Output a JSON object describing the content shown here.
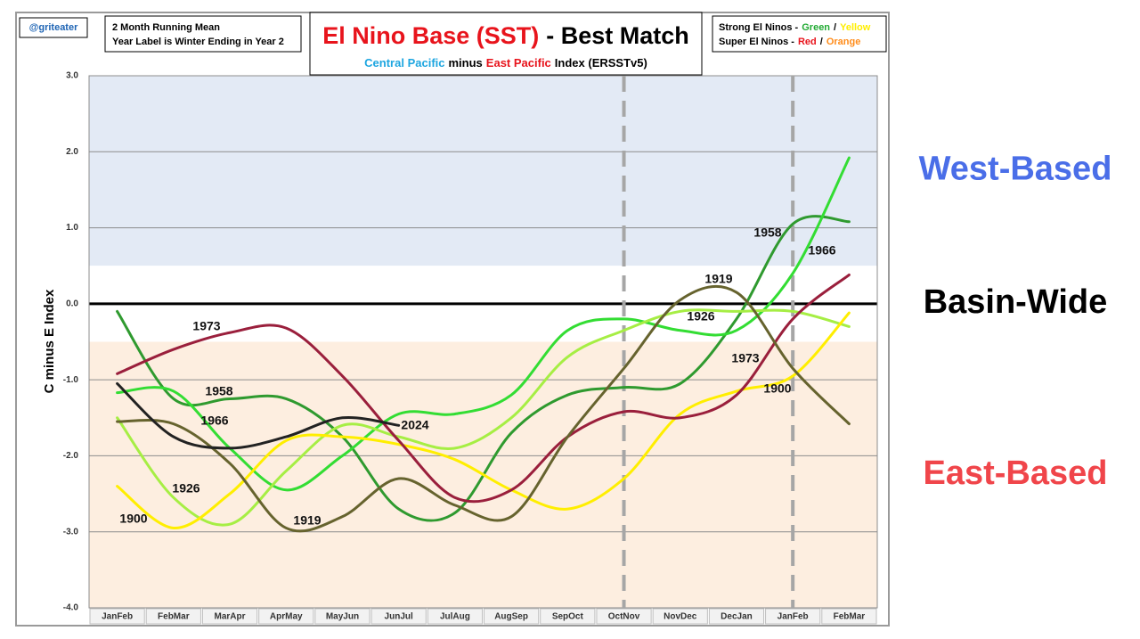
{
  "chart_data": {
    "type": "line",
    "author": "@griteater",
    "notes": [
      "2 Month Running Mean",
      "Year Label is Winter Ending in Year 2"
    ],
    "title": [
      "El Nino Base (SST)",
      "- Best Match"
    ],
    "title_colors": [
      "#e8141c",
      "#000000"
    ],
    "subtitle": [
      "Central Pacific",
      "minus",
      "East Pacific",
      "Index (ERSSTv5)"
    ],
    "subtitle_colors": [
      "#1ea6e0",
      "#000000",
      "#e8141c",
      "#000000"
    ],
    "key": [
      [
        "Strong El Ninos -",
        "Green",
        "/",
        "Yellow"
      ],
      [
        "Super El Ninos -",
        "Red",
        "/",
        "Orange"
      ]
    ],
    "key_colors": [
      [
        "#000000",
        "#22aa33",
        "#000000",
        "#ffee00"
      ],
      [
        "#000000",
        "#e8141c",
        "#000000",
        "#ff8c1a"
      ]
    ],
    "y_label": "C minus E Index",
    "categories": [
      "JanFeb",
      "FebMar",
      "MarApr",
      "AprMay",
      "MayJun",
      "JunJul",
      "JulAug",
      "AugSep",
      "SepOct",
      "OctNov",
      "NovDec",
      "DecJan",
      "JanFeb",
      "FebMar"
    ],
    "ylim": [
      -4,
      3
    ],
    "yticks": [
      {
        "value": -4,
        "label": "-4.0"
      },
      {
        "value": -3,
        "label": "-3.0"
      },
      {
        "value": -2,
        "label": "-2.0"
      },
      {
        "value": -1,
        "label": "-1.0"
      },
      {
        "value": 0,
        "label": "0.0"
      },
      {
        "value": 1,
        "label": "1.0"
      },
      {
        "value": 2,
        "label": "2.0"
      },
      {
        "value": 3,
        "label": "3.0"
      }
    ],
    "grid": true,
    "vlines": [
      9,
      12
    ],
    "regions": [
      {
        "name": "West-Based",
        "from": 0.5,
        "to": 3,
        "color": "#e3eaf5",
        "text_color": "#4a6ee8"
      },
      {
        "name": "Basin-Wide",
        "from": -0.5,
        "to": 0.5,
        "color": "#ffffff",
        "text_color": "#000000"
      },
      {
        "name": "East-Based",
        "from": -4,
        "to": -0.5,
        "color": "#fdeee0",
        "text_color": "#f0454a"
      }
    ],
    "series": [
      {
        "name": "1958",
        "color": "#2f9a2f",
        "values": [
          -0.1,
          -1.25,
          -1.25,
          -1.25,
          -1.75,
          -2.7,
          -2.75,
          -1.7,
          -1.2,
          -1.1,
          -1.05,
          -0.2,
          1.05,
          1.08
        ]
      },
      {
        "name": "1966",
        "color": "#33dd33",
        "values": [
          -1.17,
          -1.15,
          -1.9,
          -2.45,
          -2.0,
          -1.45,
          -1.45,
          -1.2,
          -0.35,
          -0.2,
          -0.35,
          -0.35,
          0.4,
          1.92
        ]
      },
      {
        "name": "1926",
        "color": "#a6ee44",
        "values": [
          -1.5,
          -2.55,
          -2.9,
          -2.2,
          -1.6,
          -1.75,
          -1.9,
          -1.5,
          -0.7,
          -0.35,
          -0.1,
          -0.1,
          -0.1,
          -0.3
        ]
      },
      {
        "name": "1900",
        "color": "#ffee00",
        "values": [
          -2.4,
          -2.95,
          -2.5,
          -1.8,
          -1.75,
          -1.85,
          -2.05,
          -2.45,
          -2.7,
          -2.3,
          -1.45,
          -1.15,
          -0.95,
          -0.12
        ]
      },
      {
        "name": "1973",
        "color": "#9a1f3c",
        "values": [
          -0.92,
          -0.6,
          -0.38,
          -0.32,
          -0.95,
          -1.8,
          -2.55,
          -2.45,
          -1.75,
          -1.42,
          -1.5,
          -1.2,
          -0.2,
          0.38
        ]
      },
      {
        "name": "1919",
        "color": "#66632e",
        "values": [
          -1.55,
          -1.58,
          -2.1,
          -2.95,
          -2.8,
          -2.3,
          -2.65,
          -2.8,
          -1.75,
          -0.85,
          0.05,
          0.15,
          -0.85,
          -1.58
        ]
      },
      {
        "name": "2024",
        "color": "#222222",
        "values": [
          -1.05,
          -1.75,
          -1.9,
          -1.75,
          -1.5,
          -1.6,
          null,
          null,
          null,
          null,
          null,
          null,
          null,
          null
        ]
      }
    ]
  }
}
